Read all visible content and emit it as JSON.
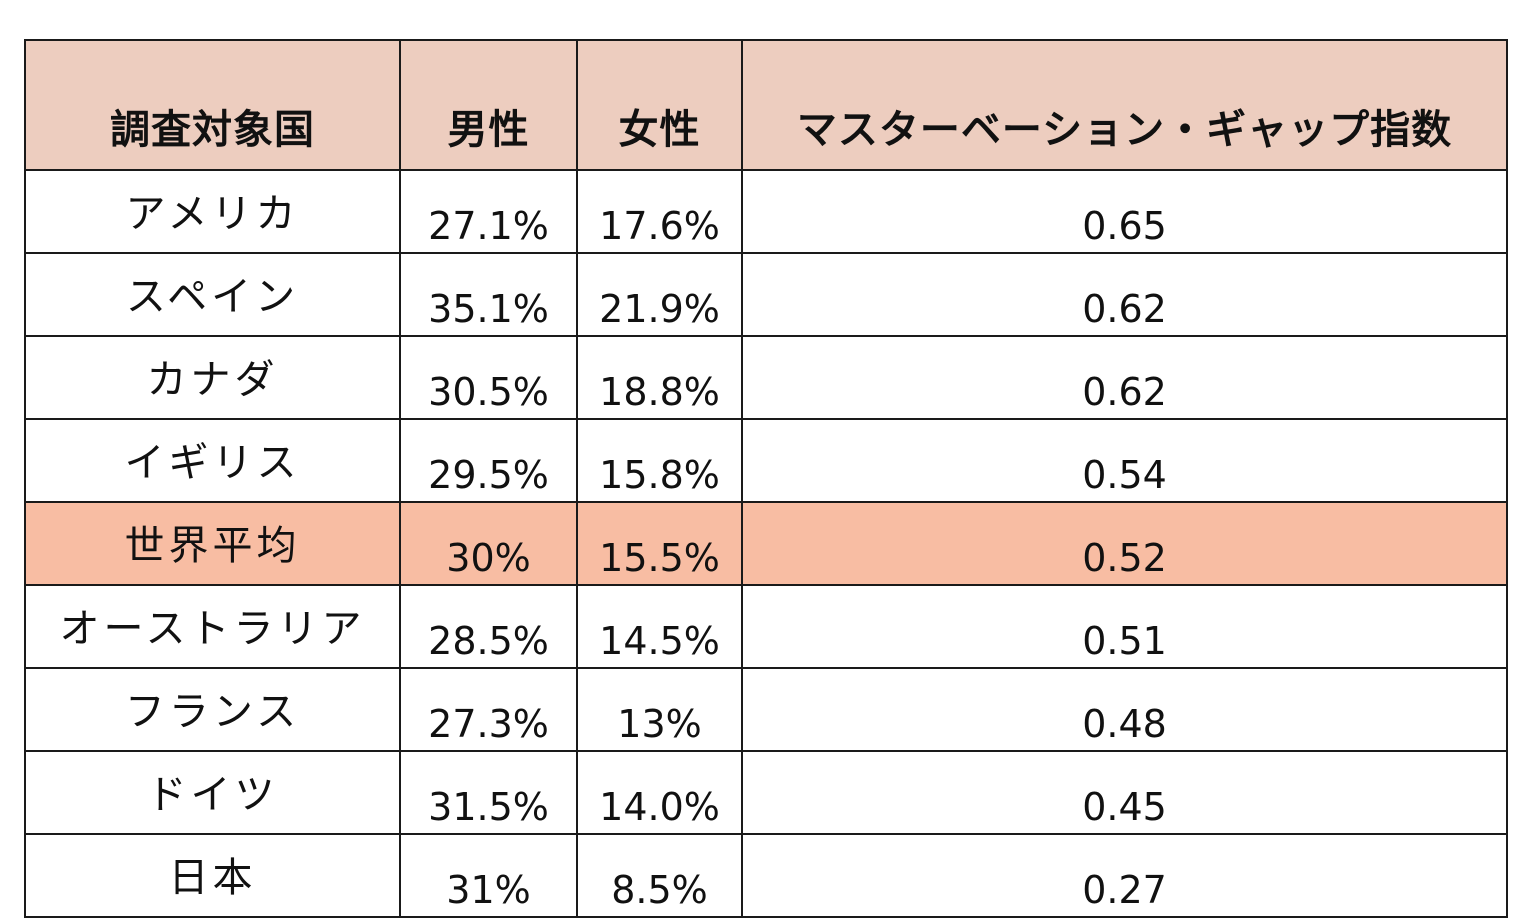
{
  "chart_data": {
    "type": "table",
    "columns": [
      "調査対象国",
      "男性",
      "女性",
      "マスターベーション・ギャップ指数"
    ],
    "rows": [
      {
        "country": "アメリカ",
        "male": "27.1%",
        "female": "17.6%",
        "index": "0.65",
        "highlight": false
      },
      {
        "country": "スペイン",
        "male": "35.1%",
        "female": "21.9%",
        "index": "0.62",
        "highlight": false
      },
      {
        "country": "カナダ",
        "male": "30.5%",
        "female": "18.8%",
        "index": "0.62",
        "highlight": false
      },
      {
        "country": "イギリス",
        "male": "29.5%",
        "female": "15.8%",
        "index": "0.54",
        "highlight": false
      },
      {
        "country": "世界平均",
        "male": "30%",
        "female": "15.5%",
        "index": "0.52",
        "highlight": true
      },
      {
        "country": "オーストラリア",
        "male": "28.5%",
        "female": "14.5%",
        "index": "0.51",
        "highlight": false
      },
      {
        "country": "フランス",
        "male": "27.3%",
        "female": "13%",
        "index": "0.48",
        "highlight": false
      },
      {
        "country": "ドイツ",
        "male": "31.5%",
        "female": "14.0%",
        "index": "0.45",
        "highlight": false
      },
      {
        "country": "日本",
        "male": "31%",
        "female": "8.5%",
        "index": "0.27",
        "highlight": false
      }
    ]
  },
  "colors": {
    "header_bg": "#edcdbf",
    "highlight_bg": "#f8bda3",
    "border": "#1a1a1a"
  }
}
